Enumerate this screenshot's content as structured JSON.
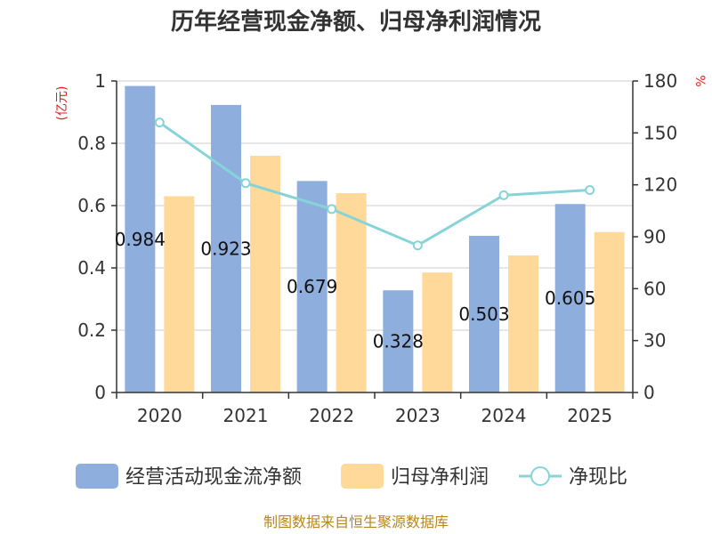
{
  "chart_data": {
    "type": "bar",
    "title": "历年经营现金净额、归母净利润情况",
    "categories": [
      "2020",
      "2021",
      "2022",
      "2023",
      "2024",
      "2025"
    ],
    "series": [
      {
        "name": "经营活动现金流净额",
        "kind": "bar",
        "axis": "left",
        "color": "#8eaede",
        "values": [
          0.984,
          0.923,
          0.679,
          0.328,
          0.503,
          0.605
        ],
        "labels": [
          "0.984",
          "0.923",
          "0.679",
          "0.328",
          "0.503",
          "0.605"
        ]
      },
      {
        "name": "归母净利润",
        "kind": "bar",
        "axis": "left",
        "color": "#ffd99a",
        "values": [
          0.63,
          0.76,
          0.64,
          0.385,
          0.44,
          0.515
        ]
      },
      {
        "name": "净现比",
        "kind": "line",
        "axis": "right",
        "color": "#87d4d8",
        "values": [
          156,
          121,
          106,
          85,
          114,
          117
        ]
      }
    ],
    "left_axis": {
      "unit": "(亿元)",
      "min": 0,
      "max": 1,
      "ticks": [
        0,
        0.2,
        0.4,
        0.6,
        0.8,
        1
      ],
      "tick_labels": [
        "0",
        "0.2",
        "0.4",
        "0.6",
        "0.8",
        "1"
      ]
    },
    "right_axis": {
      "unit": "%",
      "min": 0,
      "max": 180,
      "ticks": [
        0,
        30,
        60,
        90,
        120,
        150,
        180
      ],
      "tick_labels": [
        "0",
        "30",
        "60",
        "90",
        "120",
        "150",
        "180"
      ]
    },
    "grid": true,
    "legend_position": "bottom"
  },
  "source": "制图数据来自恒生聚源数据库"
}
